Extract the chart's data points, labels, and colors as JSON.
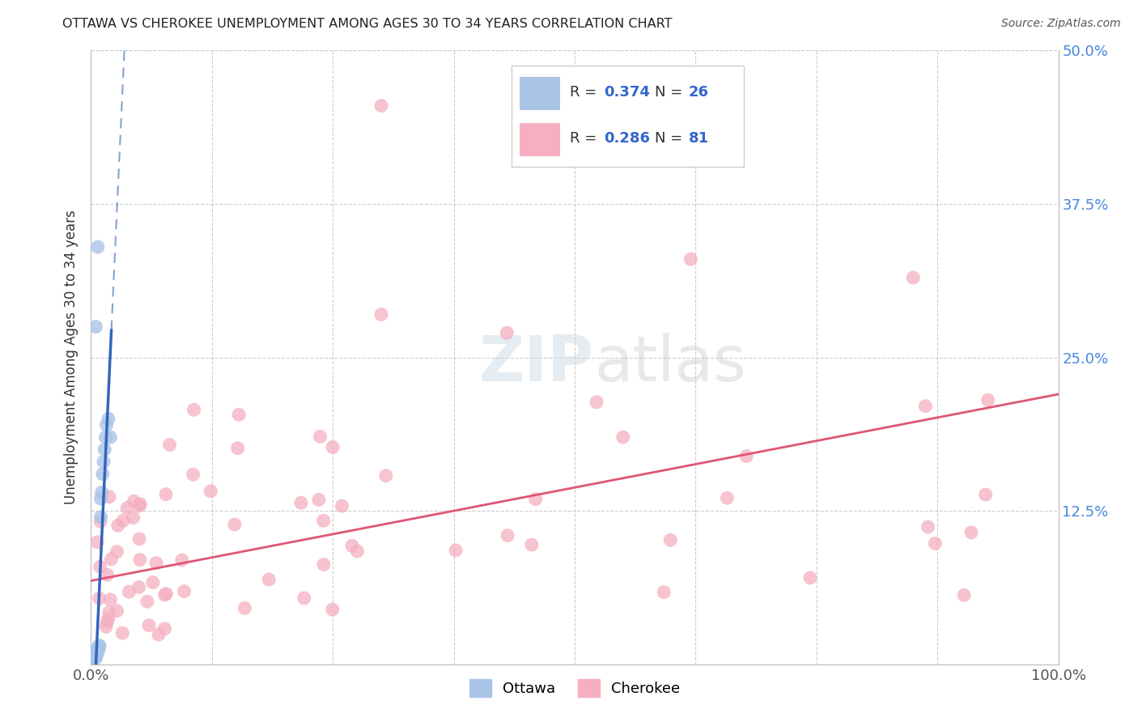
{
  "title": "OTTAWA VS CHEROKEE UNEMPLOYMENT AMONG AGES 30 TO 34 YEARS CORRELATION CHART",
  "source": "Source: ZipAtlas.com",
  "ylabel": "Unemployment Among Ages 30 to 34 years",
  "xlim": [
    0,
    1.0
  ],
  "ylim": [
    0,
    0.5
  ],
  "background_color": "#ffffff",
  "ottawa_color": "#aac4e8",
  "cherokee_color": "#f5afc0",
  "trendline_ottawa_color": "#3366bb",
  "trendline_cherokee_color": "#e05575",
  "watermark_zip": "ZIP",
  "watermark_atlas": "atlas",
  "legend_box_color": "#e8eef8",
  "legend_border_color": "#cccccc"
}
